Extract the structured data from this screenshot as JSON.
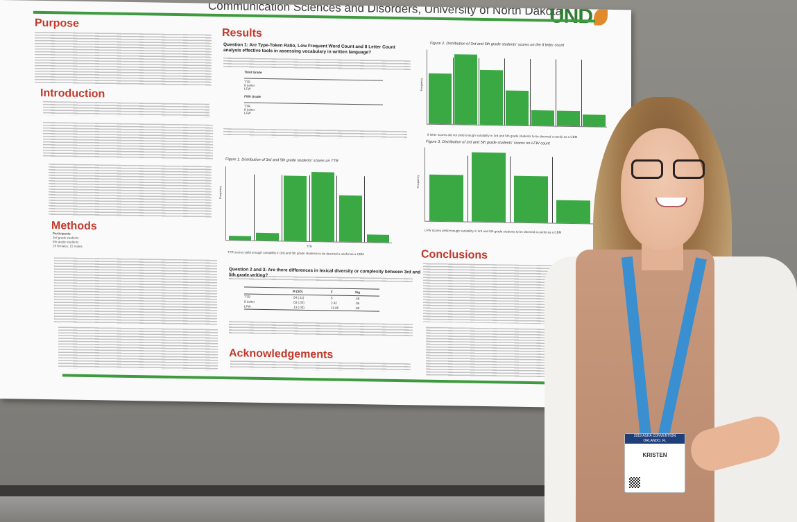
{
  "poster": {
    "header": "Communication Sciences and Disorders, University of North Dakota",
    "logo": "UND",
    "sections": {
      "purpose": "Purpose",
      "introduction": "Introduction",
      "methods": "Methods",
      "results": "Results",
      "conclusions": "Conclusions",
      "acknowledgements": "Acknowledgements"
    },
    "question1": "Question 1: Are Type-Token Ratio, Low Frequent Word Count and 8 Letter Count analysis effective tools in assessing vocabulary in written language?",
    "question23": "Question 2 and 3: Are there differences in lexical diversity or complexity between 3rd and 5th grade writing?",
    "table1_group1": "Third Grade",
    "table1_group2": "Fifth Grade",
    "table1_rows": [
      "TTR",
      "8 Letter",
      "LFW"
    ],
    "table2_header": [
      "M (SD)",
      "F",
      "Sig"
    ],
    "table2_rows": [
      [
        "TTR",
        ".54 (.11)",
        "5",
        ".48"
      ],
      [
        "8 Letter",
        ".03 (.02)",
        "2.42",
        ".05"
      ],
      [
        "LFW",
        ".13 (.03)",
        "13.85",
        ".00"
      ]
    ],
    "fig1_caption": "Figure 1. Distribution of 3rd and 5th grade students' scores on TTR",
    "fig1_note": "TTR scores yield enough variability in 3rd and 5th grade students to be deemed a useful as a CBM",
    "fig1_xlabel": "TTR",
    "fig2_caption": "Figure 2. Distribution of 3rd and 5th grade students' scores on the 8 letter count",
    "fig2_note": "8 letter scores did not yield enough variability in 3rd and 5th grade students to be deemed a useful as a CBM",
    "fig3_caption": "Figure 3. Distribution of 3rd and 5th grade students' scores on LFW count",
    "fig3_note": "LFW scores yield enough variability in 3rd and 5th grade students to be deemed a useful as a CBM",
    "ylabel": "Frequency",
    "methods_participants": [
      "Participants",
      "3rd grade students",
      "5th grade students",
      "19 females, 15 males"
    ]
  },
  "charts": {
    "fig1_values": [
      1,
      2,
      17,
      18,
      12,
      2
    ],
    "fig2_values": [
      13,
      18,
      14,
      9,
      4,
      4,
      3
    ],
    "fig3_values": [
      4,
      6,
      4,
      2
    ]
  },
  "person": {
    "badge_event": "2019 ASHA CONVENTION",
    "badge_location": "ORLANDO, FL",
    "badge_name": "KRISTEN"
  },
  "colors": {
    "accent_green": "#3aa944",
    "heading_red": "#c0392b",
    "lanyard_blue": "#3a8fd0"
  }
}
